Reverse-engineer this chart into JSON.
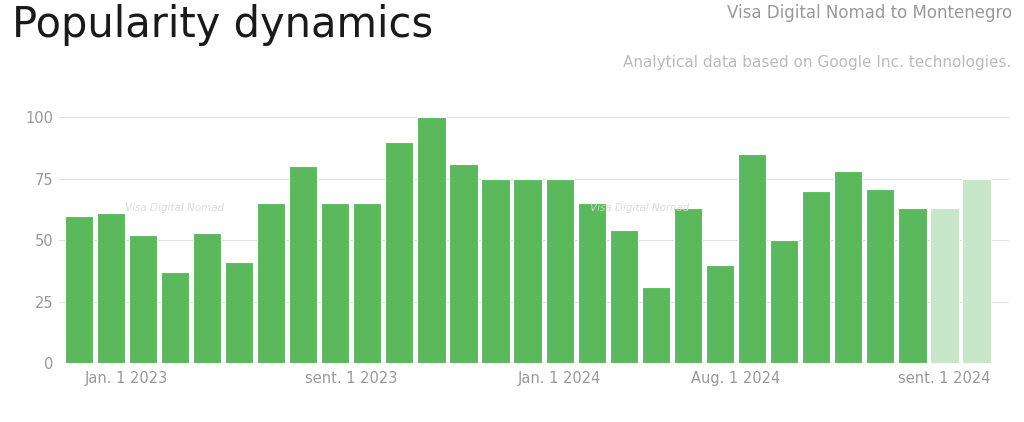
{
  "title": "Popularity dynamics",
  "subtitle_line1": "Visa Digital Nomad to Montenegro",
  "subtitle_line2": "Analytical data based on Google Inc. technologies.",
  "values": [
    60,
    61,
    52,
    37,
    53,
    41,
    65,
    80,
    65,
    65,
    90,
    100,
    81,
    75,
    75,
    75,
    65,
    54,
    31,
    63,
    40,
    85,
    50,
    70,
    78,
    71,
    63,
    63,
    75
  ],
  "faded_indices": [
    27,
    28
  ],
  "bar_color": "#5cb85c",
  "bar_color_faded": "#c8e6c9",
  "background_color": "#ffffff",
  "grid_color": "#e0e0e0",
  "yticks": [
    0,
    25,
    50,
    75,
    100
  ],
  "xtick_labels": [
    "Jan. 1 2023",
    "sent. 1 2023",
    "Jan. 1 2024",
    "Aug. 1 2024",
    "sent. 1 2024"
  ],
  "xtick_positions": [
    1.5,
    8.5,
    15.0,
    20.5,
    27.0
  ],
  "ylim": [
    0,
    110
  ],
  "xlim": [
    -0.6,
    29.0
  ],
  "title_fontsize": 30,
  "subtitle1_fontsize": 12,
  "subtitle2_fontsize": 11,
  "axis_label_fontsize": 10.5
}
